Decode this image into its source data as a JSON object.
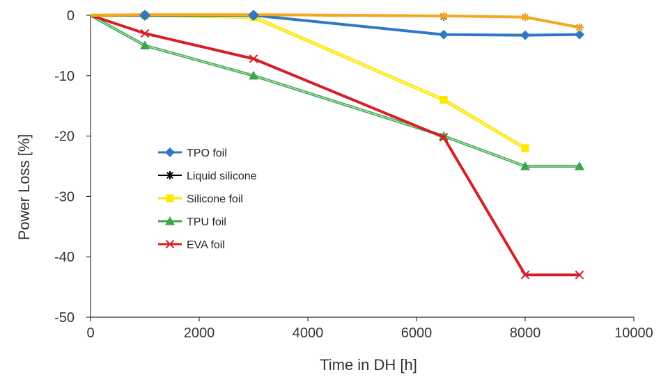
{
  "chart_data": {
    "type": "line",
    "title": "",
    "xlabel": "Time in DH [h]",
    "ylabel": "Power Loss [%]",
    "xlim": [
      0,
      10000
    ],
    "ylim": [
      -50,
      0
    ],
    "xticks": [
      0,
      2000,
      4000,
      6000,
      8000,
      10000
    ],
    "yticks": [
      0,
      -10,
      -20,
      -30,
      -40,
      -50
    ],
    "grid": false,
    "legend_position": "left-middle",
    "series": [
      {
        "name": "TPO foil",
        "color": "#2e78c4",
        "marker": "diamond",
        "x": [
          0,
          1000,
          3000,
          6500,
          8000,
          9000
        ],
        "y": [
          0,
          0,
          0,
          -3.2,
          -3.3,
          -3.2
        ]
      },
      {
        "name": "Liquid silicone",
        "color": "#000000",
        "marker": "asterisk",
        "x": [
          0,
          1000,
          3000,
          6500,
          8000,
          9000
        ],
        "y": [
          0,
          0,
          0,
          -0.2,
          -0.3,
          -2
        ]
      },
      {
        "name": "Silicone foil",
        "color": "#ffe600",
        "marker": "square",
        "x": [
          0,
          1000,
          3000,
          6500,
          8000
        ],
        "y": [
          0,
          0,
          -0.3,
          -14,
          -22
        ]
      },
      {
        "name": "TPU foil",
        "color": "#3aa648",
        "marker": "triangle",
        "x": [
          0,
          1000,
          3000,
          6500,
          8000,
          9000
        ],
        "y": [
          0,
          -5,
          -10,
          -20,
          -25,
          -25
        ]
      },
      {
        "name": "EVA foil",
        "color": "#d62027",
        "marker": "x",
        "x": [
          0,
          1000,
          3000,
          6500,
          8000,
          9000
        ],
        "y": [
          0,
          -3,
          -7.2,
          -20.2,
          -43,
          -43
        ]
      }
    ],
    "overlay_lines": [
      {
        "color": "#f5a623",
        "x": [
          0,
          1000,
          3000,
          6500,
          8000,
          9000
        ],
        "y": [
          0,
          0.1,
          0.1,
          -0.1,
          -0.3,
          -2
        ]
      }
    ]
  }
}
